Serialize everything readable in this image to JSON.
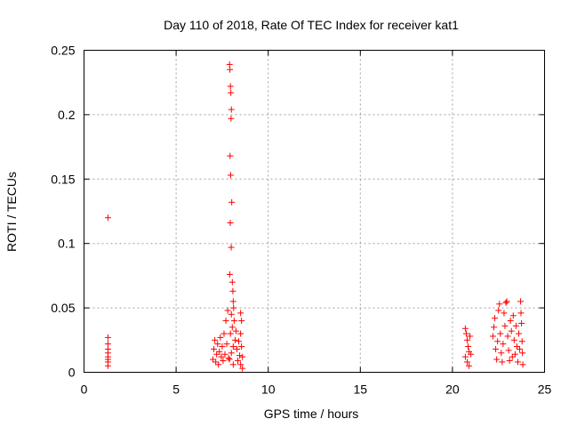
{
  "chart_data": {
    "type": "scatter",
    "title": "Day 110 of 2018, Rate Of TEC Index for receiver kat1",
    "xlabel": "GPS time / hours",
    "ylabel": "ROTI / TECUs",
    "xlim": [
      0,
      25
    ],
    "ylim": [
      0,
      0.25
    ],
    "xticks": [
      0,
      5,
      10,
      15,
      20,
      25
    ],
    "xtick_labels": [
      "0",
      "5",
      "10",
      "15",
      "20",
      "25"
    ],
    "yticks": [
      0,
      0.05,
      0.1,
      0.15,
      0.2,
      0.25
    ],
    "ytick_labels": [
      "0",
      "0.05",
      "0.1",
      "0.15",
      "0.2",
      "0.25"
    ],
    "grid": true,
    "legend": "none",
    "marker": "+",
    "series": [
      {
        "name": "ROTI",
        "color": "#ff0000",
        "points": [
          [
            1.3,
            0.12
          ],
          [
            1.3,
            0.027
          ],
          [
            1.3,
            0.022
          ],
          [
            1.3,
            0.018
          ],
          [
            1.3,
            0.015
          ],
          [
            1.3,
            0.012
          ],
          [
            1.3,
            0.01
          ],
          [
            1.3,
            0.008
          ],
          [
            1.3,
            0.005
          ],
          [
            7.0,
            0.01
          ],
          [
            7.05,
            0.018
          ],
          [
            7.1,
            0.025
          ],
          [
            7.15,
            0.008
          ],
          [
            7.2,
            0.014
          ],
          [
            7.25,
            0.022
          ],
          [
            7.3,
            0.006
          ],
          [
            7.35,
            0.016
          ],
          [
            7.4,
            0.027
          ],
          [
            7.45,
            0.012
          ],
          [
            7.5,
            0.02
          ],
          [
            7.55,
            0.009
          ],
          [
            7.6,
            0.03
          ],
          [
            7.65,
            0.014
          ],
          [
            7.7,
            0.04
          ],
          [
            7.75,
            0.022
          ],
          [
            7.8,
            0.048
          ],
          [
            7.85,
            0.011
          ],
          [
            7.9,
            0.239
          ],
          [
            7.92,
            0.235
          ],
          [
            7.95,
            0.222
          ],
          [
            7.97,
            0.217
          ],
          [
            8.0,
            0.204
          ],
          [
            7.98,
            0.197
          ],
          [
            7.93,
            0.168
          ],
          [
            7.96,
            0.153
          ],
          [
            8.02,
            0.132
          ],
          [
            7.94,
            0.116
          ],
          [
            7.99,
            0.097
          ],
          [
            7.91,
            0.076
          ],
          [
            8.05,
            0.07
          ],
          [
            8.08,
            0.063
          ],
          [
            8.1,
            0.055
          ],
          [
            8.12,
            0.05
          ],
          [
            8.0,
            0.045
          ],
          [
            8.15,
            0.04
          ],
          [
            8.05,
            0.035
          ],
          [
            7.95,
            0.03
          ],
          [
            8.2,
            0.025
          ],
          [
            8.1,
            0.02
          ],
          [
            8.0,
            0.015
          ],
          [
            7.9,
            0.01
          ],
          [
            8.1,
            0.006
          ],
          [
            8.25,
            0.032
          ],
          [
            8.3,
            0.018
          ],
          [
            8.35,
            0.009
          ],
          [
            8.4,
            0.024
          ],
          [
            8.45,
            0.013
          ],
          [
            8.5,
            0.046
          ],
          [
            8.55,
            0.04
          ],
          [
            8.5,
            0.03
          ],
          [
            8.55,
            0.02
          ],
          [
            8.6,
            0.012
          ],
          [
            8.5,
            0.006
          ],
          [
            8.6,
            0.003
          ],
          [
            20.7,
            0.034
          ],
          [
            20.75,
            0.03
          ],
          [
            20.8,
            0.025
          ],
          [
            20.85,
            0.02
          ],
          [
            20.9,
            0.016
          ],
          [
            20.7,
            0.012
          ],
          [
            20.8,
            0.008
          ],
          [
            20.9,
            0.005
          ],
          [
            20.95,
            0.028
          ],
          [
            21.0,
            0.014
          ],
          [
            22.2,
            0.028
          ],
          [
            22.25,
            0.035
          ],
          [
            22.3,
            0.042
          ],
          [
            22.35,
            0.018
          ],
          [
            22.4,
            0.01
          ],
          [
            22.45,
            0.024
          ],
          [
            22.5,
            0.048
          ],
          [
            22.55,
            0.053
          ],
          [
            22.6,
            0.03
          ],
          [
            22.65,
            0.015
          ],
          [
            22.7,
            0.008
          ],
          [
            22.75,
            0.022
          ],
          [
            22.8,
            0.046
          ],
          [
            22.85,
            0.036
          ],
          [
            22.9,
            0.054
          ],
          [
            22.95,
            0.055
          ],
          [
            23.0,
            0.028
          ],
          [
            23.05,
            0.017
          ],
          [
            23.1,
            0.009
          ],
          [
            23.15,
            0.04
          ],
          [
            23.2,
            0.032
          ],
          [
            23.25,
            0.012
          ],
          [
            23.3,
            0.044
          ],
          [
            23.35,
            0.025
          ],
          [
            23.4,
            0.014
          ],
          [
            23.45,
            0.036
          ],
          [
            23.5,
            0.02
          ],
          [
            23.55,
            0.008
          ],
          [
            23.6,
            0.03
          ],
          [
            23.65,
            0.018
          ],
          [
            23.7,
            0.055
          ],
          [
            23.72,
            0.046
          ],
          [
            23.75,
            0.038
          ],
          [
            23.78,
            0.024
          ],
          [
            23.8,
            0.015
          ],
          [
            23.82,
            0.006
          ]
        ]
      }
    ]
  }
}
